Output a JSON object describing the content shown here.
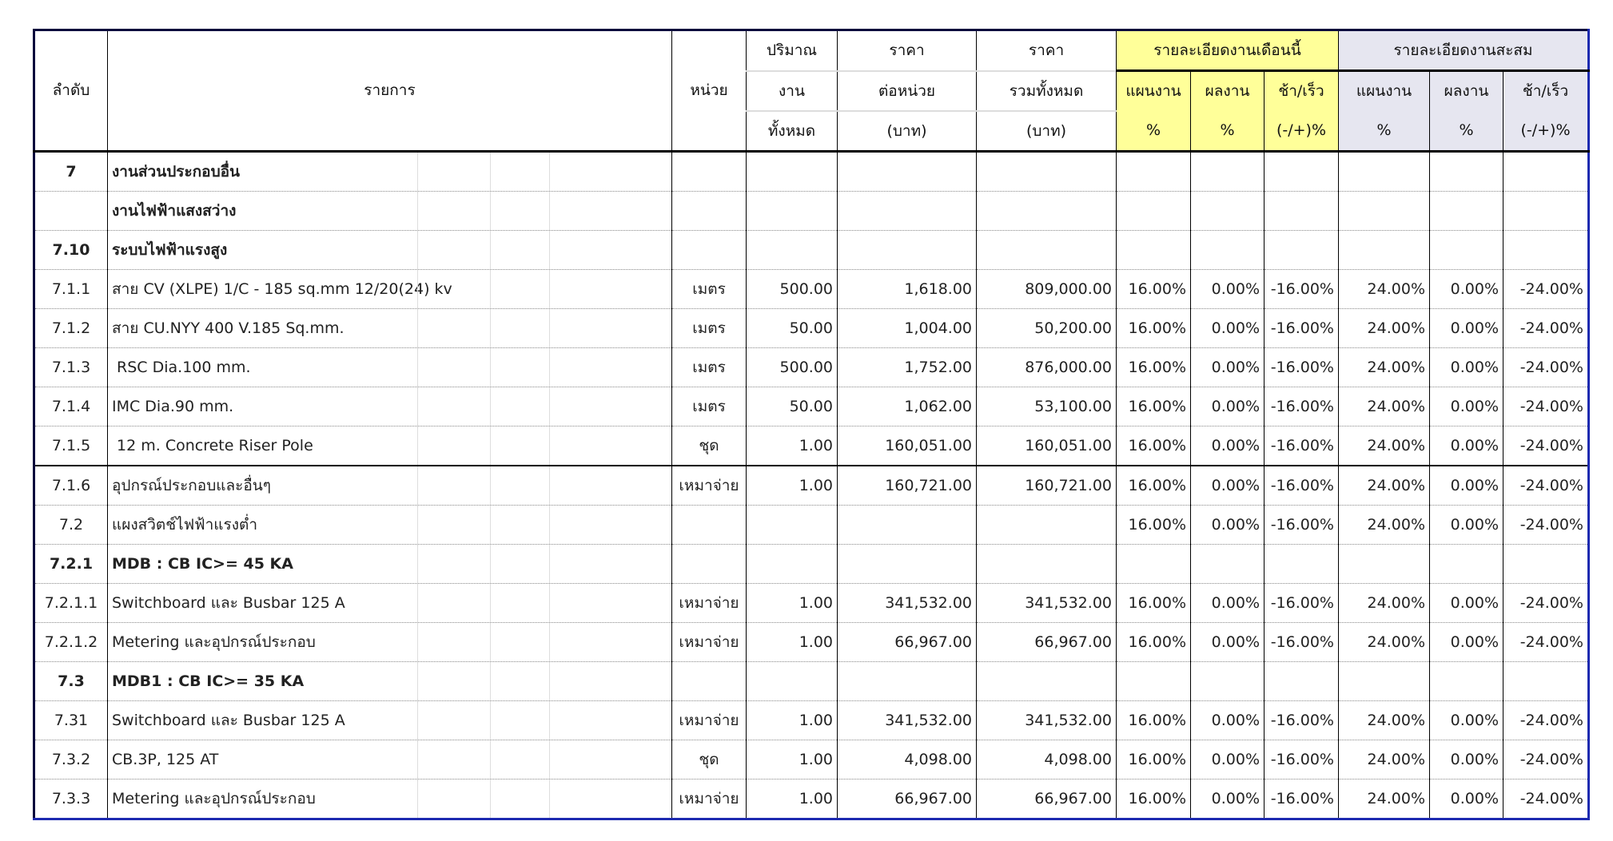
{
  "header": {
    "no": "ลำดับ",
    "item": "รายการ",
    "unit": "หน่วย",
    "qty": [
      "ปริมาณ",
      "งาน",
      "ทั้งหมด"
    ],
    "unit_price": [
      "ราคา",
      "ต่อหน่วย",
      "(บาท)"
    ],
    "total_price": [
      "ราคา",
      "รวมทั้งหมด",
      "(บาท)"
    ],
    "this_month": "รายละเอียดงานเดือนนี้",
    "cumulative": "รายละเอียดงานสะสม",
    "plan": [
      "แผนงาน",
      "%"
    ],
    "actual": [
      "ผลงาน",
      "%"
    ],
    "diff": [
      "ช้า/เร็ว",
      "(-/+)%"
    ]
  },
  "rows": [
    {
      "no": "7",
      "item": "งานส่วนประกอบอื่น",
      "bold": true,
      "unit": "",
      "qty": "",
      "price": "",
      "total": "",
      "m_plan": "",
      "m_act": "",
      "m_diff": "",
      "c_plan": "",
      "c_act": "",
      "c_diff": ""
    },
    {
      "no": "",
      "item": "งานไฟฟ้าแสงสว่าง",
      "bold": true,
      "unit": "",
      "qty": "",
      "price": "",
      "total": "",
      "m_plan": "",
      "m_act": "",
      "m_diff": "",
      "c_plan": "",
      "c_act": "",
      "c_diff": ""
    },
    {
      "no": "7.10",
      "item": "ระบบไฟฟ้าแรงสูง",
      "bold": true,
      "unit": "",
      "qty": "",
      "price": "",
      "total": "",
      "m_plan": "",
      "m_act": "",
      "m_diff": "",
      "c_plan": "",
      "c_act": "",
      "c_diff": ""
    },
    {
      "no": "7.1.1",
      "item": "สาย CV (XLPE) 1/C - 185 sq.mm 12/20(24) kv",
      "unit": "เมตร",
      "qty": "500.00",
      "price": "1,618.00",
      "total": "809,000.00",
      "m_plan": "16.00%",
      "m_act": "0.00%",
      "m_diff": "-16.00%",
      "c_plan": "24.00%",
      "c_act": "0.00%",
      "c_diff": "-24.00%"
    },
    {
      "no": "7.1.2",
      "item": "สาย CU.NYY 400 V.185 Sq.mm.",
      "unit": "เมตร",
      "qty": "50.00",
      "price": "1,004.00",
      "total": "50,200.00",
      "m_plan": "16.00%",
      "m_act": "0.00%",
      "m_diff": "-16.00%",
      "c_plan": "24.00%",
      "c_act": "0.00%",
      "c_diff": "-24.00%"
    },
    {
      "no": "7.1.3",
      "item": " RSC Dia.100 mm.",
      "unit": "เมตร",
      "qty": "500.00",
      "price": "1,752.00",
      "total": "876,000.00",
      "m_plan": "16.00%",
      "m_act": "0.00%",
      "m_diff": "-16.00%",
      "c_plan": "24.00%",
      "c_act": "0.00%",
      "c_diff": "-24.00%"
    },
    {
      "no": "7.1.4",
      "item": "IMC Dia.90 mm.",
      "unit": "เมตร",
      "qty": "50.00",
      "price": "1,062.00",
      "total": "53,100.00",
      "m_plan": "16.00%",
      "m_act": "0.00%",
      "m_diff": "-16.00%",
      "c_plan": "24.00%",
      "c_act": "0.00%",
      "c_diff": "-24.00%"
    },
    {
      "no": "7.1.5",
      "item": " 12 m. Concrete Riser Pole",
      "unit": "ชุด",
      "qty": "1.00",
      "price": "160,051.00",
      "total": "160,051.00",
      "m_plan": "16.00%",
      "m_act": "0.00%",
      "m_diff": "-16.00%",
      "c_plan": "24.00%",
      "c_act": "0.00%",
      "c_diff": "-24.00%",
      "groupEnd": true
    },
    {
      "no": "7.1.6",
      "item": "อุปกรณ์ประกอบและอื่นๆ",
      "unit": "เหมาจ่าย",
      "qty": "1.00",
      "price": "160,721.00",
      "total": "160,721.00",
      "m_plan": "16.00%",
      "m_act": "0.00%",
      "m_diff": "-16.00%",
      "c_plan": "24.00%",
      "c_act": "0.00%",
      "c_diff": "-24.00%"
    },
    {
      "no": "7.2",
      "item": "แผงสวิตช์ไฟฟ้าแรงต่ำ",
      "unit": "",
      "qty": "",
      "price": "",
      "total": "",
      "m_plan": "16.00%",
      "m_act": "0.00%",
      "m_diff": "-16.00%",
      "c_plan": "24.00%",
      "c_act": "0.00%",
      "c_diff": "-24.00%"
    },
    {
      "no": "7.2.1",
      "item": "MDB : CB IC>= 45 KA",
      "bold": true,
      "unit": "",
      "qty": "",
      "price": "",
      "total": "",
      "m_plan": "",
      "m_act": "",
      "m_diff": "",
      "c_plan": "",
      "c_act": "",
      "c_diff": ""
    },
    {
      "no": "7.2.1.1",
      "item": "Switchboard และ Busbar 125 A",
      "unit": "เหมาจ่าย",
      "qty": "1.00",
      "price": "341,532.00",
      "total": "341,532.00",
      "m_plan": "16.00%",
      "m_act": "0.00%",
      "m_diff": "-16.00%",
      "c_plan": "24.00%",
      "c_act": "0.00%",
      "c_diff": "-24.00%"
    },
    {
      "no": "7.2.1.2",
      "item": "Metering และอุปกรณ์ประกอบ",
      "unit": "เหมาจ่าย",
      "qty": "1.00",
      "price": "66,967.00",
      "total": "66,967.00",
      "m_plan": "16.00%",
      "m_act": "0.00%",
      "m_diff": "-16.00%",
      "c_plan": "24.00%",
      "c_act": "0.00%",
      "c_diff": "-24.00%"
    },
    {
      "no": "7.3",
      "item": "MDB1 : CB IC>= 35 KA",
      "bold": true,
      "unit": "",
      "qty": "",
      "price": "",
      "total": "",
      "m_plan": "",
      "m_act": "",
      "m_diff": "",
      "c_plan": "",
      "c_act": "",
      "c_diff": ""
    },
    {
      "no": "7.31",
      "item": "Switchboard และ Busbar 125 A",
      "unit": "เหมาจ่าย",
      "qty": "1.00",
      "price": "341,532.00",
      "total": "341,532.00",
      "m_plan": "16.00%",
      "m_act": "0.00%",
      "m_diff": "-16.00%",
      "c_plan": "24.00%",
      "c_act": "0.00%",
      "c_diff": "-24.00%"
    },
    {
      "no": "7.3.2",
      "item": "CB.3P, 125 AT",
      "unit": "ชุด",
      "qty": "1.00",
      "price": "4,098.00",
      "total": "4,098.00",
      "m_plan": "16.00%",
      "m_act": "0.00%",
      "m_diff": "-16.00%",
      "c_plan": "24.00%",
      "c_act": "0.00%",
      "c_diff": "-24.00%"
    },
    {
      "no": "7.3.3",
      "item": "Metering และอุปกรณ์ประกอบ",
      "unit": "เหมาจ่าย",
      "qty": "1.00",
      "price": "66,967.00",
      "total": "66,967.00",
      "m_plan": "16.00%",
      "m_act": "0.00%",
      "m_diff": "-16.00%",
      "c_plan": "24.00%",
      "c_act": "0.00%",
      "c_diff": "-24.00%"
    }
  ]
}
